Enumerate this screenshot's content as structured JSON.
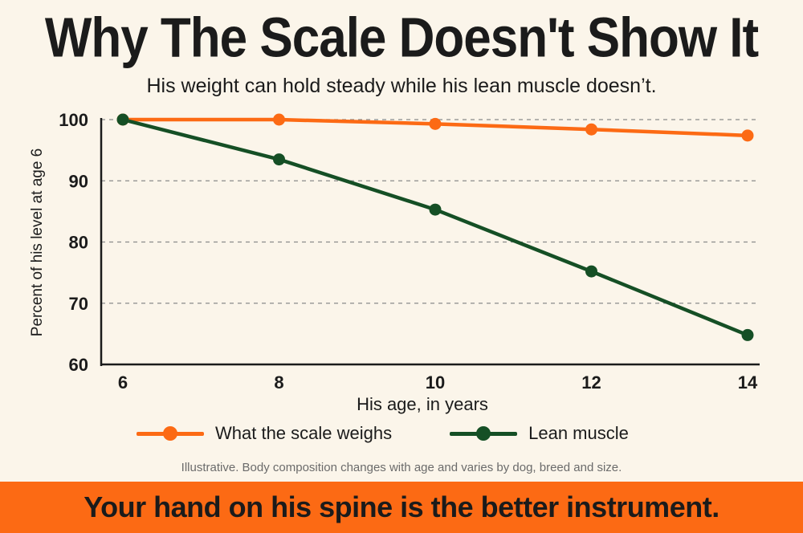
{
  "header": {
    "title": "Why The Scale Doesn't Show It",
    "subtitle": "His weight can hold steady while his lean muscle doesn’t."
  },
  "chart_data": {
    "type": "line",
    "x": [
      6,
      8,
      10,
      12,
      14
    ],
    "series": [
      {
        "name": "What the scale weighs",
        "color": "#fc6a14",
        "values": [
          100,
          100,
          99.3,
          98.4,
          97.4
        ]
      },
      {
        "name": "Lean muscle",
        "color": "#154f25",
        "values": [
          100,
          93.5,
          85.3,
          75.2,
          64.8
        ]
      }
    ],
    "xlabel": "His age, in years",
    "ylabel": "Percent of his level at age 6",
    "xlim": [
      6,
      14
    ],
    "ylim": [
      60,
      100
    ],
    "xticks": [
      6,
      8,
      10,
      12,
      14
    ],
    "yticks": [
      60,
      70,
      80,
      90,
      100
    ],
    "grid": "horizontal dashed",
    "legend_placement": "bottom"
  },
  "footnote": "Illustrative. Body composition changes with age and varies by dog, breed and size.",
  "banner": {
    "text": "Your hand on his spine is the better instrument.",
    "color": "#fc6a14"
  }
}
